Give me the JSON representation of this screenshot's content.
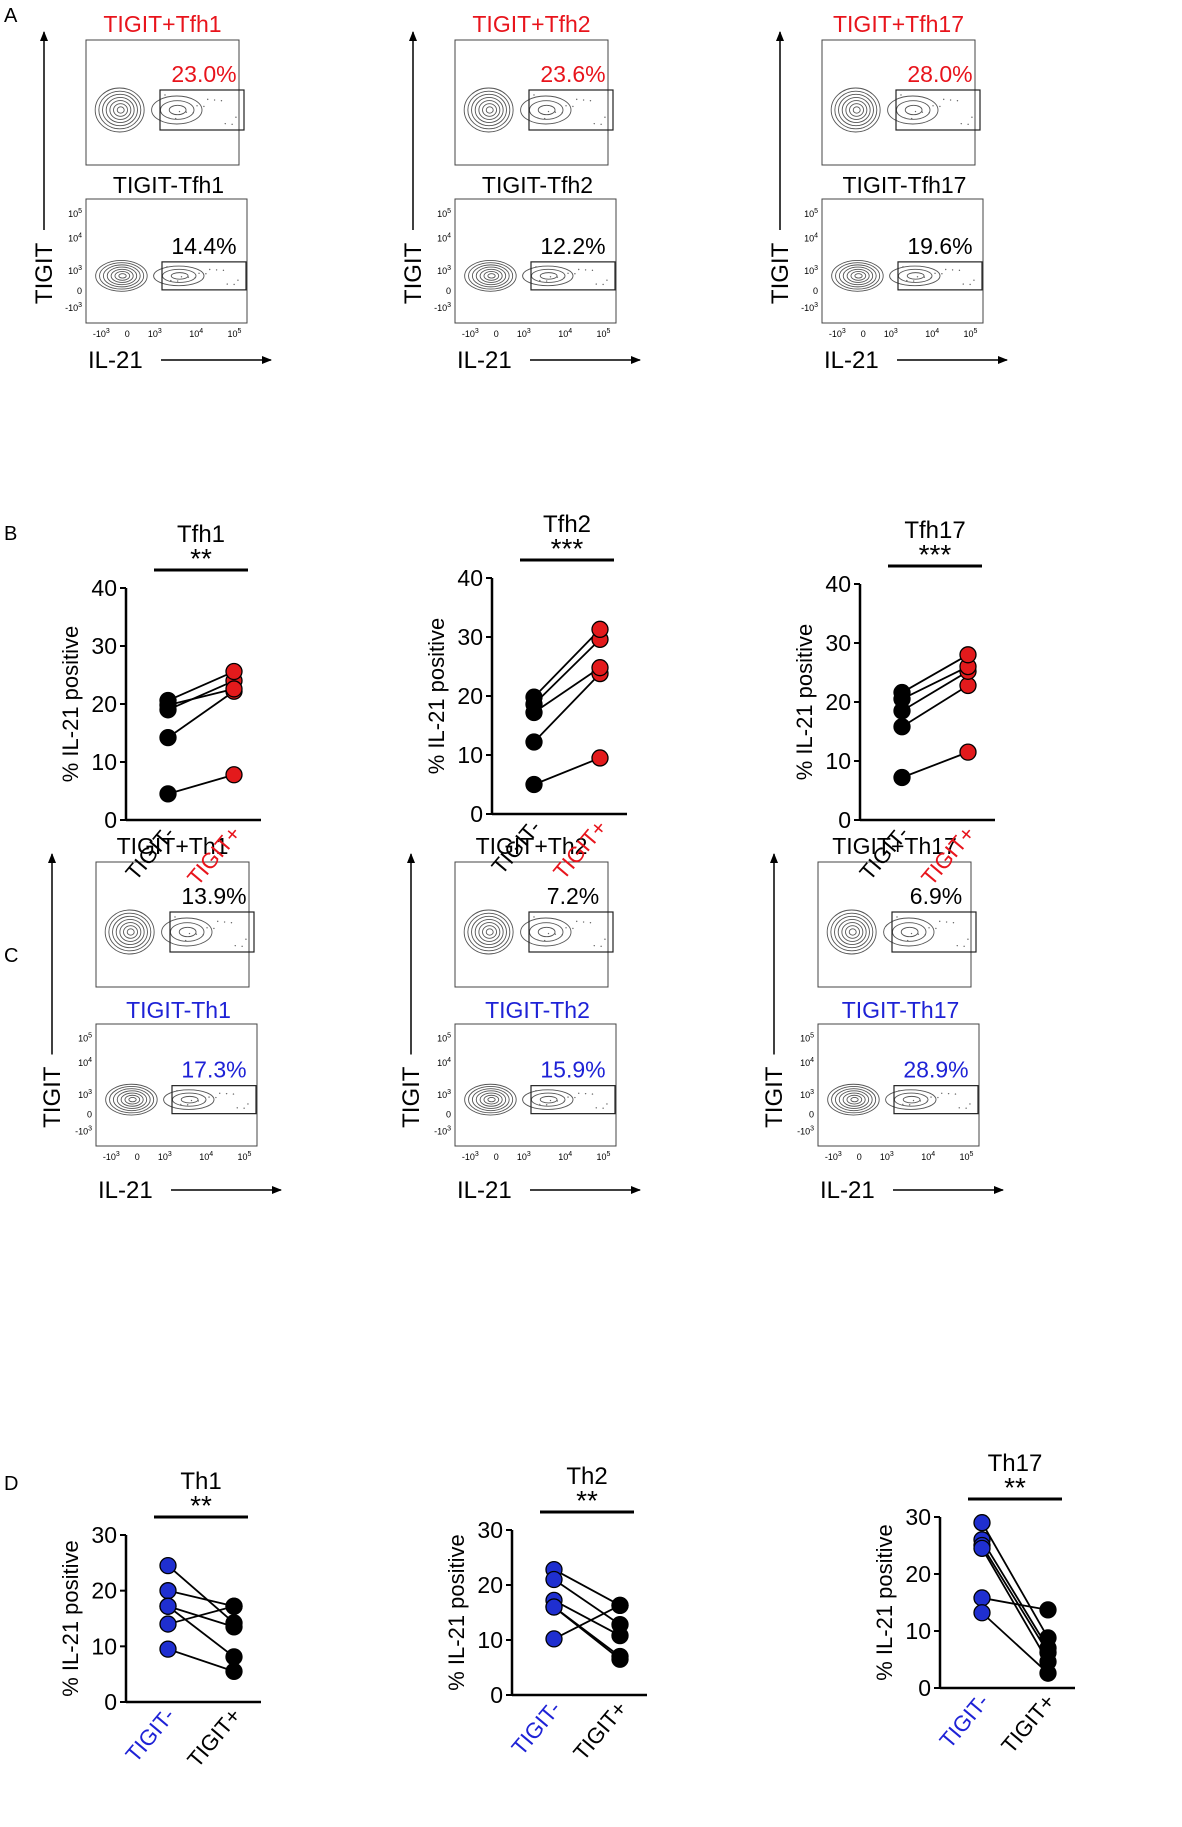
{
  "colors": {
    "red": "#e8141c",
    "blue": "#1e22d6",
    "black": "#000000",
    "fill_red": "#e31a1c",
    "fill_blue": "#1f2fd0"
  },
  "panel_labels": [
    "A",
    "B",
    "C",
    "D"
  ],
  "flow_axes": {
    "y_label": "TIGIT",
    "x_label": "IL-21"
  },
  "ticks": {
    "x": [
      "-10",
      "0",
      "10",
      "10",
      "10"
    ],
    "x_exp": [
      "3",
      "",
      "3",
      "4",
      "5"
    ],
    "y": [
      "10",
      "10",
      "10",
      "0",
      "-10"
    ],
    "y_exp": [
      "5",
      "4",
      "3",
      "",
      "3"
    ]
  },
  "panel_A": [
    {
      "top_title": "TIGIT+Tfh1",
      "top_pct": "23.0%",
      "bottom_title": "TIGIT-Tfh1",
      "bottom_pct": "14.4%"
    },
    {
      "top_title": "TIGIT+Tfh2",
      "top_pct": "23.6%",
      "bottom_title": "TIGIT-Tfh2",
      "bottom_pct": "12.2%"
    },
    {
      "top_title": "TIGIT+Tfh17",
      "top_pct": "28.0%",
      "bottom_title": "TIGIT-Tfh17",
      "bottom_pct": "19.6%"
    }
  ],
  "panel_C": [
    {
      "top_title": "TIGIT+Th1",
      "top_pct": "13.9%",
      "bottom_title": "TIGIT-Th1",
      "bottom_pct": "17.3%"
    },
    {
      "top_title": "TIGIT+Th2",
      "top_pct": "7.2%",
      "bottom_title": "TIGIT-Th2",
      "bottom_pct": "15.9%"
    },
    {
      "top_title": "TIGIT+Th17",
      "top_pct": "6.9%",
      "bottom_title": "TIGIT-Th17",
      "bottom_pct": "28.9%"
    }
  ],
  "chart_data": [
    {
      "type": "scatter",
      "title": "Tfh1",
      "significance": "**",
      "ylabel": "% IL-21 positive",
      "ylim": [
        0,
        40
      ],
      "yticks": [
        "0",
        "10",
        "20",
        "30",
        "40"
      ],
      "categories": [
        "TIGIT-",
        "TIGIT+"
      ],
      "pairs": [
        [
          4.5,
          7.8
        ],
        [
          14.2,
          22.2
        ],
        [
          19.0,
          24.0
        ],
        [
          19.8,
          22.6
        ],
        [
          20.6,
          25.6
        ]
      ]
    },
    {
      "type": "scatter",
      "title": "Tfh2",
      "significance": "***",
      "ylabel": "% IL-21 positive",
      "ylim": [
        0,
        40
      ],
      "yticks": [
        "0",
        "10",
        "20",
        "30",
        "40"
      ],
      "categories": [
        "TIGIT-",
        "TIGIT+"
      ],
      "pairs": [
        [
          5.0,
          9.5
        ],
        [
          12.2,
          23.8
        ],
        [
          17.2,
          24.8
        ],
        [
          18.6,
          29.6
        ],
        [
          19.8,
          31.3
        ]
      ]
    },
    {
      "type": "scatter",
      "title": "Tfh17",
      "significance": "***",
      "ylabel": "% IL-21 positive",
      "ylim": [
        0,
        40
      ],
      "yticks": [
        "0",
        "10",
        "20",
        "30",
        "40"
      ],
      "categories": [
        "TIGIT-",
        "TIGIT+"
      ],
      "pairs": [
        [
          7.2,
          11.5
        ],
        [
          15.8,
          22.8
        ],
        [
          18.5,
          25.2
        ],
        [
          20.5,
          26.0
        ],
        [
          21.6,
          28.0
        ]
      ]
    },
    {
      "type": "scatter",
      "title": "Th1",
      "significance": "**",
      "ylabel": "% IL-21 positive",
      "ylim": [
        0,
        30
      ],
      "yticks": [
        "0",
        "10",
        "20",
        "30"
      ],
      "categories": [
        "TIGIT-",
        "TIGIT+"
      ],
      "pairs": [
        [
          24.5,
          14.2
        ],
        [
          20.0,
          17.2
        ],
        [
          17.2,
          13.5
        ],
        [
          17.2,
          8.1
        ],
        [
          14.0,
          17.2
        ],
        [
          9.5,
          5.5
        ]
      ]
    },
    {
      "type": "scatter",
      "title": "Th2",
      "significance": "**",
      "ylabel": "% IL-21 positive",
      "ylim": [
        0,
        30
      ],
      "yticks": [
        "0",
        "10",
        "20",
        "30"
      ],
      "categories": [
        "TIGIT-",
        "TIGIT+"
      ],
      "pairs": [
        [
          22.8,
          16.3
        ],
        [
          21.0,
          12.8
        ],
        [
          17.2,
          10.8
        ],
        [
          16.0,
          7.0
        ],
        [
          16.0,
          6.5
        ],
        [
          10.2,
          16.3
        ]
      ]
    },
    {
      "type": "scatter",
      "title": "Th17",
      "significance": "**",
      "ylabel": "% IL-21 positive",
      "ylim": [
        0,
        30
      ],
      "yticks": [
        "0",
        "10",
        "20",
        "30"
      ],
      "categories": [
        "TIGIT-",
        "TIGIT+"
      ],
      "pairs": [
        [
          29.0,
          8.8
        ],
        [
          26.0,
          7.0
        ],
        [
          25.0,
          6.2
        ],
        [
          24.5,
          4.6
        ],
        [
          15.8,
          13.7
        ],
        [
          13.2,
          2.6
        ]
      ]
    }
  ]
}
